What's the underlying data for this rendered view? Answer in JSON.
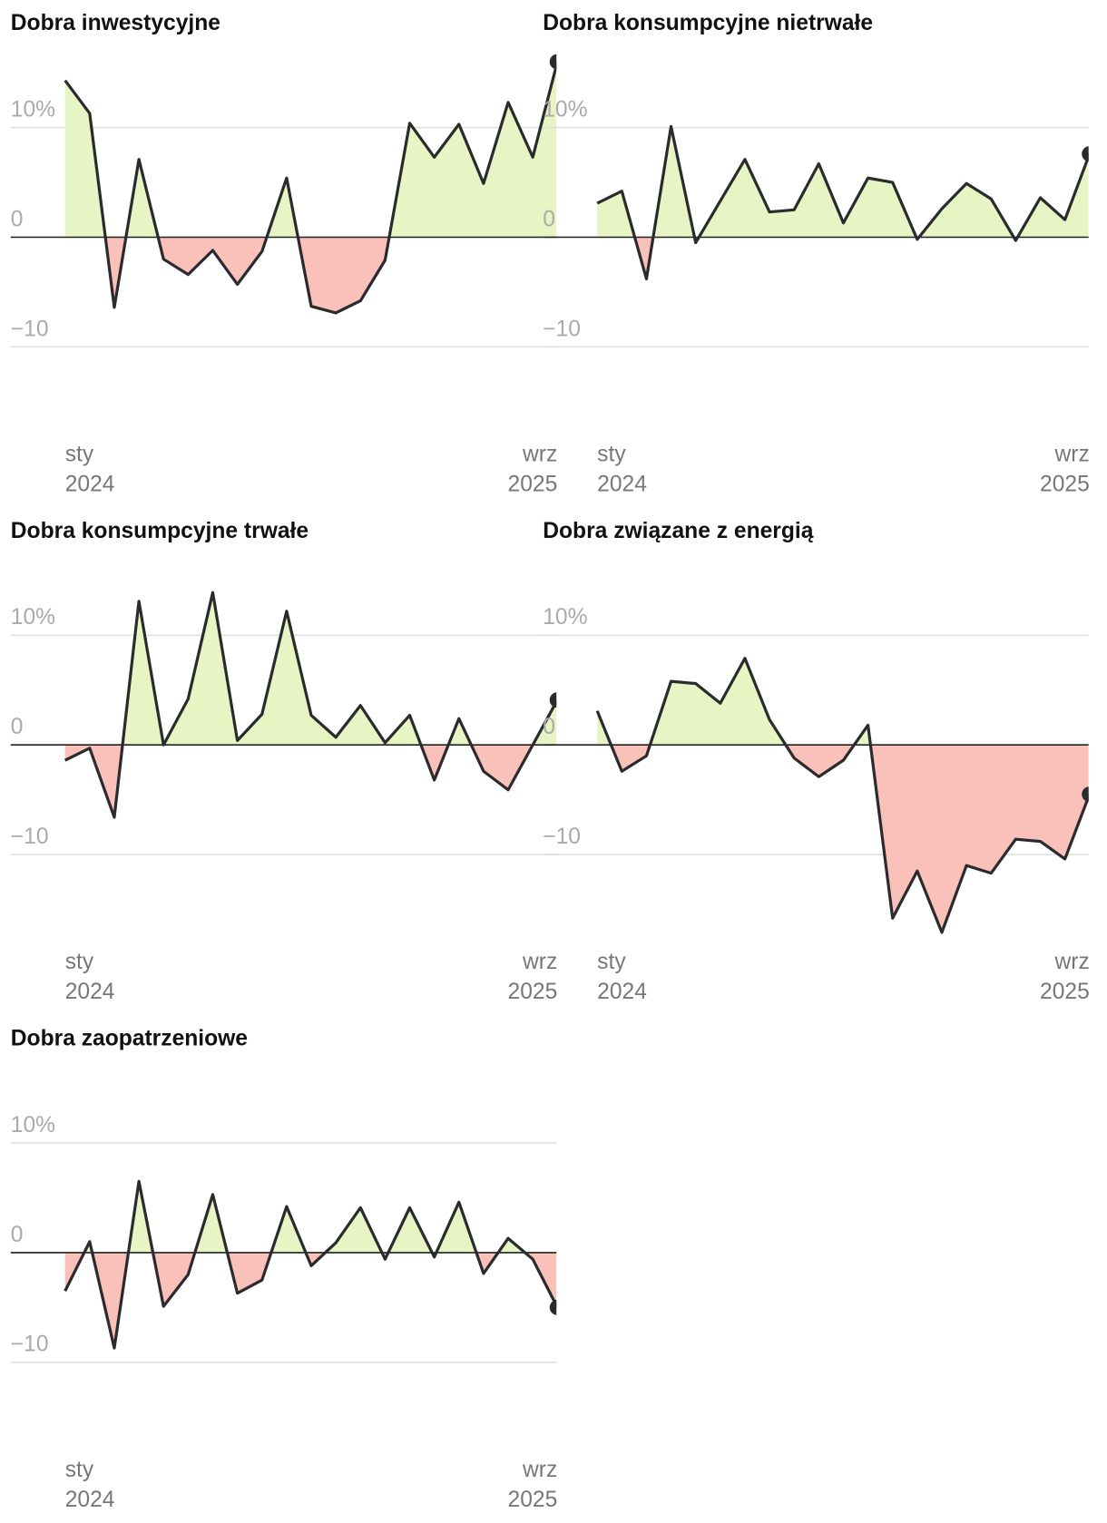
{
  "chart_data": [
    {
      "type": "line",
      "title": "Dobra inwestycyjne",
      "categories": [
        "sty\n2024",
        null,
        null,
        null,
        null,
        null,
        null,
        null,
        null,
        null,
        null,
        null,
        null,
        null,
        null,
        null,
        null,
        null,
        null,
        null,
        "wrz\n2025"
      ],
      "values": [
        14.3,
        11.3,
        -6.4,
        7.1,
        -2.0,
        -3.4,
        -1.2,
        -4.3,
        -1.3,
        5.4,
        -6.3,
        -6.9,
        -5.8,
        -2.1,
        10.4,
        7.3,
        10.3,
        4.9,
        12.3,
        7.3,
        16.0
      ],
      "color": "#2b2b2e",
      "positive_color": "#e7f4c3",
      "negative_color": "#fac1bb",
      "ylim": [
        -17.5,
        16.5
      ],
      "yticks": [
        {
          "value": -10,
          "label": "−10"
        },
        0,
        {
          "value": 10,
          "label": "10%"
        }
      ],
      "grid": true
    },
    {
      "type": "line",
      "title": "Dobra konsumpcyjne nietrwałe",
      "categories": [
        "sty\n2024",
        null,
        null,
        null,
        null,
        null,
        null,
        null,
        null,
        null,
        null,
        null,
        null,
        null,
        null,
        null,
        null,
        null,
        null,
        null,
        "wrz\n2025"
      ],
      "values": [
        3.1,
        4.2,
        -3.8,
        10.1,
        -0.5,
        3.3,
        7.1,
        2.3,
        2.5,
        6.7,
        1.3,
        5.4,
        5.0,
        -0.2,
        2.6,
        4.9,
        3.5,
        -0.3,
        3.6,
        1.6,
        7.6
      ],
      "color": "#2b2b2e",
      "positive_color": "#e7f4c3",
      "negative_color": "#fac1bb",
      "ylim": [
        -17.5,
        16.5
      ],
      "yticks": [
        {
          "value": -10,
          "label": "−10"
        },
        0,
        {
          "value": 10,
          "label": "10%"
        }
      ],
      "grid": true
    },
    {
      "type": "line",
      "title": "Dobra konsumpcyjne trwałe",
      "categories": [
        "sty\n2024",
        null,
        null,
        null,
        null,
        null,
        null,
        null,
        null,
        null,
        null,
        null,
        null,
        null,
        null,
        null,
        null,
        null,
        null,
        null,
        "wrz\n2025"
      ],
      "values": [
        -1.4,
        -0.3,
        -6.6,
        13.1,
        0,
        4.2,
        13.9,
        0.4,
        2.8,
        12.2,
        2.7,
        0.7,
        3.6,
        0.2,
        2.7,
        -3.2,
        2.4,
        -2.4,
        -4.1,
        0,
        4.1
      ],
      "color": "#2b2b2e",
      "positive_color": "#e7f4c3",
      "negative_color": "#fac1bb",
      "ylim": [
        -17.5,
        16.5
      ],
      "yticks": [
        {
          "value": -10,
          "label": "−10"
        },
        0,
        {
          "value": 10,
          "label": "10%"
        }
      ],
      "grid": true
    },
    {
      "type": "line",
      "title": "Dobra związane z energią",
      "categories": [
        "sty\n2024",
        null,
        null,
        null,
        null,
        null,
        null,
        null,
        null,
        null,
        null,
        null,
        null,
        null,
        null,
        null,
        null,
        null,
        null,
        null,
        "wrz\n2025"
      ],
      "values": [
        3.1,
        -2.4,
        -1.0,
        5.8,
        5.6,
        3.8,
        7.9,
        2.3,
        -1.2,
        -2.9,
        -1.4,
        1.8,
        -15.8,
        -11.5,
        -17.1,
        -11.0,
        -11.7,
        -8.6,
        -8.8,
        -10.4,
        -4.5
      ],
      "color": "#2b2b2e",
      "positive_color": "#e7f4c3",
      "negative_color": "#fac1bb",
      "ylim": [
        -17.5,
        16.5
      ],
      "yticks": [
        {
          "value": -10,
          "label": "−10"
        },
        0,
        {
          "value": 10,
          "label": "10%"
        }
      ],
      "grid": true
    },
    {
      "type": "line",
      "title": "Dobra zaopatrzeniowe",
      "categories": [
        "sty\n2024",
        null,
        null,
        null,
        null,
        null,
        null,
        null,
        null,
        null,
        null,
        null,
        null,
        null,
        null,
        null,
        null,
        null,
        null,
        null,
        "wrz\n2025"
      ],
      "values": [
        -3.5,
        1.0,
        -8.7,
        6.5,
        -4.9,
        -2.0,
        5.3,
        -3.7,
        -2.5,
        4.2,
        -1.2,
        0.9,
        4.1,
        -0.6,
        4.1,
        -0.4,
        4.6,
        -1.9,
        1.3,
        -0.6,
        -5.0
      ],
      "color": "#2b2b2e",
      "positive_color": "#e7f4c3",
      "negative_color": "#fac1bb",
      "ylim": [
        -17.5,
        16.5
      ],
      "yticks": [
        {
          "value": -10,
          "label": "−10"
        },
        0,
        {
          "value": 10,
          "label": "10%"
        }
      ],
      "grid": true
    }
  ]
}
